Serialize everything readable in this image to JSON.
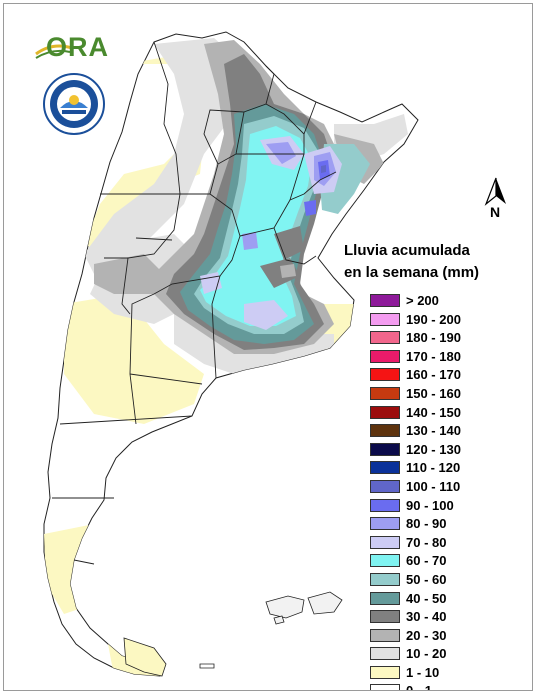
{
  "title_line1": "Lluvia acumulada",
  "title_line2": "en la semana (mm)",
  "logo_text": "ORA",
  "north_label": "N",
  "legend": [
    {
      "label": "> 200",
      "color": "#8e1a9a"
    },
    {
      "label": "190 - 200",
      "color": "#f49cf0"
    },
    {
      "label": "180 - 190",
      "color": "#f2668c"
    },
    {
      "label": "170 - 180",
      "color": "#ea1b6a"
    },
    {
      "label": "160 - 170",
      "color": "#f51414"
    },
    {
      "label": "150 - 160",
      "color": "#c63a10"
    },
    {
      "label": "140 - 150",
      "color": "#9c0d0d"
    },
    {
      "label": "130 - 140",
      "color": "#5e330e"
    },
    {
      "label": "120 - 130",
      "color": "#0b0b4a"
    },
    {
      "label": "110 - 120",
      "color": "#0a319a"
    },
    {
      "label": "100 - 110",
      "color": "#6066c8"
    },
    {
      "label": "90 - 100",
      "color": "#6a6cf0"
    },
    {
      "label": "80 - 90",
      "color": "#9e9ef2"
    },
    {
      "label": "70 - 80",
      "color": "#cdccf4"
    },
    {
      "label": "60 - 70",
      "color": "#80f4f2"
    },
    {
      "label": "50 - 60",
      "color": "#94cccc"
    },
    {
      "label": "40 - 50",
      "color": "#649a9a"
    },
    {
      "label": "30 - 40",
      "color": "#808080"
    },
    {
      "label": "20 - 30",
      "color": "#b3b3b3"
    },
    {
      "label": "10 - 20",
      "color": "#e2e2e2"
    },
    {
      "label": "1 - 10",
      "color": "#fcf8c2"
    },
    {
      "label": "0 - 1",
      "color": "#ffffff"
    }
  ]
}
